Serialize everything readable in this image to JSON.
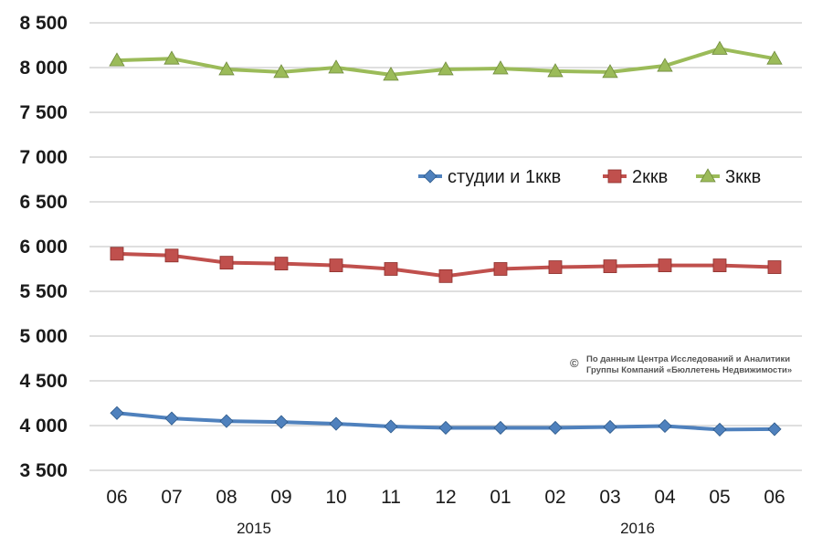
{
  "chart_data": {
    "type": "line",
    "title": "",
    "xlabel": "",
    "ylabel": "",
    "categories": [
      "06",
      "07",
      "08",
      "09",
      "10",
      "11",
      "12",
      "01",
      "02",
      "03",
      "04",
      "05",
      "06"
    ],
    "year_labels": [
      "2015",
      "2016"
    ],
    "ylim": [
      3500,
      8500
    ],
    "yticks": [
      {
        "value": 3500,
        "label": "3 500"
      },
      {
        "value": 4000,
        "label": "4 000"
      },
      {
        "value": 4500,
        "label": "4 500"
      },
      {
        "value": 5000,
        "label": "5 000"
      },
      {
        "value": 5500,
        "label": "5 500"
      },
      {
        "value": 6000,
        "label": "6 000"
      },
      {
        "value": 6500,
        "label": "6 500"
      },
      {
        "value": 7000,
        "label": "7 000"
      },
      {
        "value": 7500,
        "label": "7 500"
      },
      {
        "value": 8000,
        "label": "8 000"
      },
      {
        "value": 8500,
        "label": "8 500"
      }
    ],
    "grid": true,
    "legend_position": "upper-right",
    "series": [
      {
        "name": "студии и 1ккв",
        "color": "#4F81BD",
        "marker": "diamond",
        "values": [
          4140,
          4080,
          4050,
          4040,
          4020,
          3990,
          3975,
          3975,
          3975,
          3985,
          3995,
          3955,
          3960
        ]
      },
      {
        "name": "2ккв",
        "color": "#C0504D",
        "marker": "square",
        "values": [
          5920,
          5900,
          5820,
          5810,
          5790,
          5750,
          5670,
          5750,
          5770,
          5780,
          5790,
          5790,
          5770
        ]
      },
      {
        "name": "3ккв",
        "color": "#9BBB59",
        "marker": "triangle",
        "values": [
          8080,
          8100,
          7980,
          7950,
          8000,
          7920,
          7980,
          7990,
          7960,
          7950,
          8020,
          8210,
          8100
        ]
      }
    ],
    "annotation": {
      "copyright": "©",
      "line1": "По данным Центра Исследований и Аналитики",
      "line2": "Группы Компаний «Бюллетень Недвижимости»"
    }
  }
}
